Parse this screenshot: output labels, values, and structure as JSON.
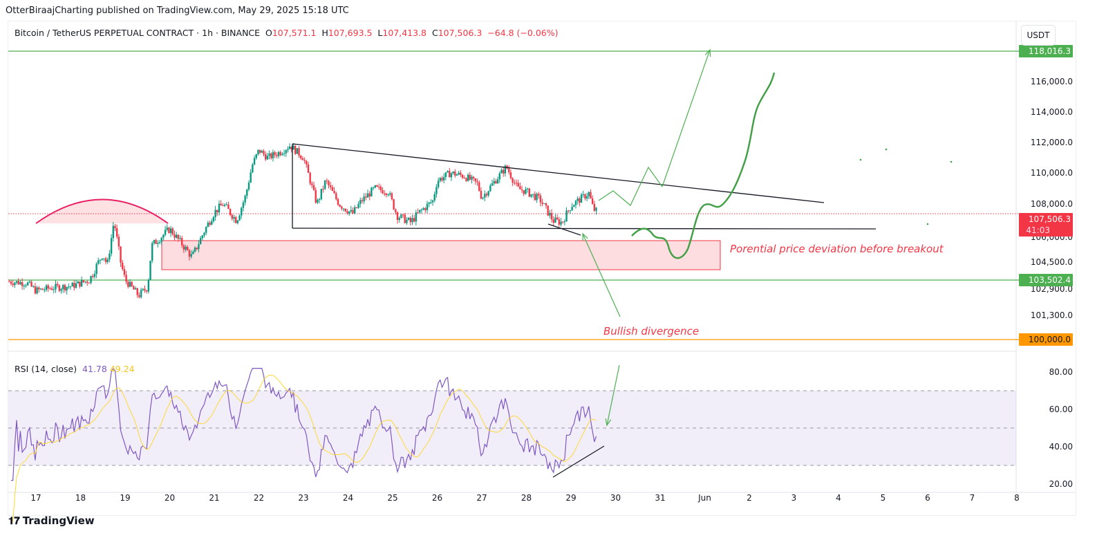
{
  "publisher": "OtterBiraajCharting published on TradingView.com, May 29, 2025 15:18 UTC",
  "legend": {
    "symbol": "Bitcoin / TetherUS PERPETUAL CONTRACT · 1h · BINANCE",
    "o_label": "O",
    "o": "107,571.1",
    "h_label": "H",
    "h": "107,693.5",
    "l_label": "L",
    "l": "107,413.8",
    "c_label": "C",
    "c": "107,506.3",
    "change": "−64.8 (−0.06%)"
  },
  "currency": "USDT",
  "rsi": {
    "label": "RSI (14, close)",
    "value": "41.78",
    "ma": "49.24"
  },
  "brand": "TradingView",
  "annotations": {
    "deviation": "Porential price deviation before breakout",
    "divergence": "Bullish divergence"
  },
  "colors": {
    "up": "#089981",
    "down": "#f23645",
    "rsi": "#7e57c2",
    "rsi_ma": "#fdd835",
    "green": "#4caf50",
    "orange": "#ff9800"
  },
  "chart_data": {
    "type": "candlestick",
    "timeframe": "1h",
    "x_ticks": [
      "17",
      "18",
      "19",
      "20",
      "21",
      "22",
      "23",
      "24",
      "25",
      "26",
      "27",
      "28",
      "29",
      "30",
      "31",
      "Jun",
      "2",
      "3",
      "4",
      "5",
      "6",
      "7",
      "8"
    ],
    "y_ticks": [
      "116,000.0",
      "114,000.0",
      "112,000.0",
      "110,000.0",
      "108,000.0",
      "106,000.0",
      "104,500.0",
      "102,900.0",
      "101,300.0"
    ],
    "price_labels": [
      {
        "value": "118,016.3",
        "color": "#4caf50"
      },
      {
        "value": "107,506.3",
        "sub": "41:03",
        "color": "#f23645"
      },
      {
        "value": "103,502.4",
        "color": "#4caf50"
      },
      {
        "value": "100,000.0",
        "color": "#ff9800"
      }
    ],
    "close_keypoints_day_price": [
      [
        16.4,
        103400
      ],
      [
        16.8,
        103300
      ],
      [
        17.0,
        102800
      ],
      [
        17.4,
        103000
      ],
      [
        17.8,
        103100
      ],
      [
        18.2,
        103500
      ],
      [
        18.5,
        105000
      ],
      [
        18.6,
        104300
      ],
      [
        18.75,
        107000
      ],
      [
        18.9,
        104500
      ],
      [
        19.0,
        103500
      ],
      [
        19.3,
        102500
      ],
      [
        19.5,
        103000
      ],
      [
        19.6,
        105500
      ],
      [
        20.0,
        106500
      ],
      [
        20.3,
        105500
      ],
      [
        20.5,
        104800
      ],
      [
        20.8,
        106500
      ],
      [
        21.0,
        107500
      ],
      [
        21.2,
        108000
      ],
      [
        21.5,
        107000
      ],
      [
        21.7,
        108500
      ],
      [
        21.85,
        110500
      ],
      [
        22.0,
        111500
      ],
      [
        22.2,
        111000
      ],
      [
        22.5,
        111400
      ],
      [
        22.7,
        111800
      ],
      [
        23.0,
        111000
      ],
      [
        23.3,
        108000
      ],
      [
        23.5,
        109500
      ],
      [
        23.8,
        108000
      ],
      [
        24.1,
        107400
      ],
      [
        24.3,
        108200
      ],
      [
        24.6,
        109000
      ],
      [
        24.9,
        108800
      ],
      [
        25.1,
        107300
      ],
      [
        25.4,
        106900
      ],
      [
        25.6,
        107500
      ],
      [
        25.9,
        108200
      ],
      [
        26.0,
        109500
      ],
      [
        26.3,
        110000
      ],
      [
        26.6,
        109800
      ],
      [
        26.9,
        109300
      ],
      [
        27.0,
        108400
      ],
      [
        27.3,
        109500
      ],
      [
        27.55,
        110400
      ],
      [
        27.8,
        109000
      ],
      [
        28.0,
        108800
      ],
      [
        28.3,
        108300
      ],
      [
        28.6,
        107000
      ],
      [
        28.8,
        106900
      ],
      [
        29.0,
        107900
      ],
      [
        29.2,
        108300
      ],
      [
        29.4,
        108700
      ],
      [
        29.5,
        107700
      ],
      [
        29.6,
        107506.3
      ]
    ],
    "rsi_ticks": [
      "80.00",
      "60.00",
      "40.00",
      "20.00"
    ],
    "rsi_bands": [
      70,
      50,
      30
    ]
  }
}
